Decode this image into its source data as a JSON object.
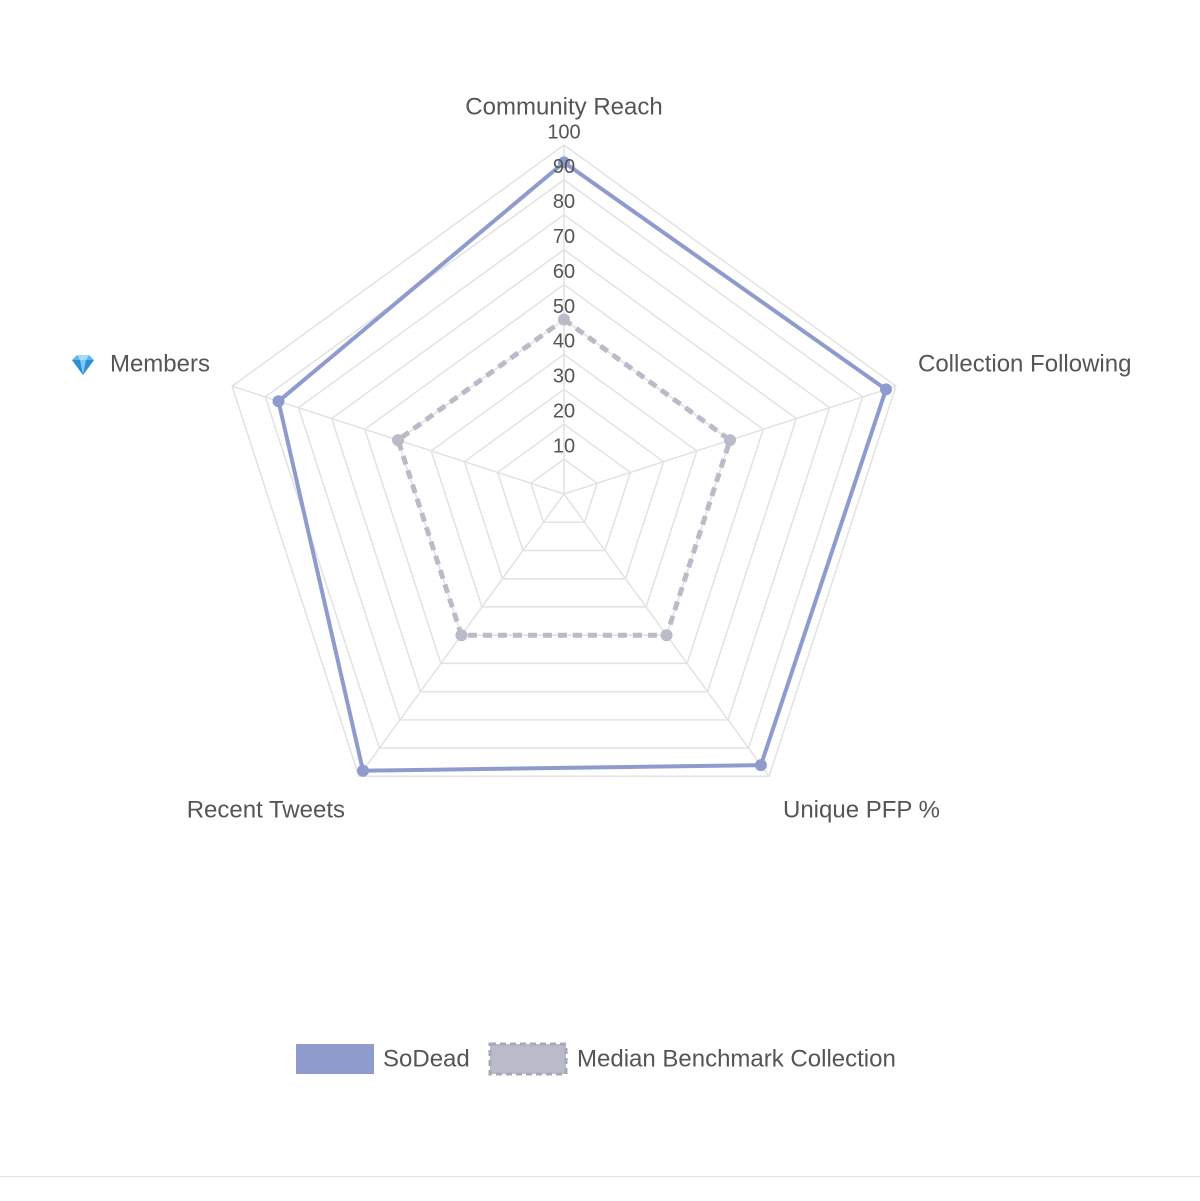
{
  "chart_data": {
    "type": "radar",
    "axes": [
      {
        "label": "Community Reach",
        "icon": null
      },
      {
        "label": "Collection Following",
        "icon": null
      },
      {
        "label": "Unique PFP %",
        "icon": null
      },
      {
        "label": "Recent Tweets",
        "icon": null
      },
      {
        "label": "Members",
        "icon": "gem-icon"
      }
    ],
    "r_range": [
      0,
      100
    ],
    "ticks": [
      "10",
      "20",
      "30",
      "40",
      "50",
      "60",
      "70",
      "80",
      "90",
      "100"
    ],
    "tick_values": [
      10,
      20,
      30,
      40,
      50,
      60,
      70,
      80,
      90,
      100
    ],
    "grid": true,
    "series": [
      {
        "name": "SoDead",
        "values": [
          95,
          97,
          96,
          98,
          86
        ],
        "color": "#8f9bcd",
        "line_style": "solid"
      },
      {
        "name": "Median Benchmark Collection",
        "values": [
          50,
          50,
          50,
          50,
          50
        ],
        "color": "#b9bcc8",
        "line_style": "dashed"
      }
    ],
    "legend_position": "bottom"
  }
}
